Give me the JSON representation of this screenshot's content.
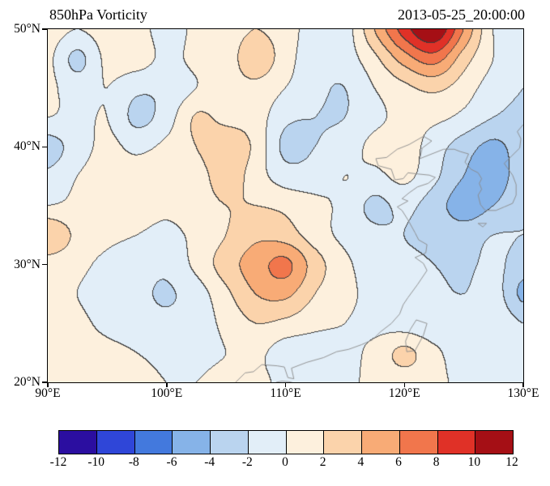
{
  "chart_data": {
    "type": "heatmap",
    "title_left": "850hPa Vorticity",
    "title_right": "2013-05-25_20:00:00",
    "xlim": [
      90,
      130
    ],
    "ylim": [
      20,
      50
    ],
    "x_ticks": [
      {
        "value": 90,
        "label": "90°E"
      },
      {
        "value": 100,
        "label": "100°E"
      },
      {
        "value": 110,
        "label": "110°E"
      },
      {
        "value": 120,
        "label": "120°E"
      },
      {
        "value": 130,
        "label": "130°E"
      }
    ],
    "y_ticks": [
      {
        "value": 50,
        "label": "50°N"
      },
      {
        "value": 40,
        "label": "40°N"
      },
      {
        "value": 30,
        "label": "30°N"
      },
      {
        "value": 20,
        "label": "20°N"
      }
    ],
    "levels": [
      -12,
      -10,
      -8,
      -6,
      -4,
      -2,
      0,
      2,
      4,
      6,
      8,
      10,
      12
    ],
    "colorbar_labels": [
      "-12",
      "-10",
      "-8",
      "-6",
      "-4",
      "-2",
      "0",
      "2",
      "4",
      "6",
      "8",
      "10",
      "12"
    ],
    "palette": [
      "#2b0ea0",
      "#2f46d8",
      "#4379dd",
      "#86b3e8",
      "#bad4ef",
      "#e2eef8",
      "#fdf0dd",
      "#fbd3ab",
      "#f8ab76",
      "#f1764c",
      "#e03127",
      "#a50f15"
    ],
    "contour_line_color": "#3c3c3c",
    "coast_color": "#8a8a8a",
    "grid": {
      "lons": [
        90,
        92.5,
        95,
        97.5,
        100,
        102.5,
        105,
        107.5,
        110,
        112.5,
        115,
        117.5,
        120,
        122.5,
        125,
        127.5,
        130
      ],
      "lats": [
        50,
        47.5,
        45,
        42.5,
        40,
        37.5,
        35,
        32.5,
        30,
        27.5,
        25,
        22.5,
        20
      ],
      "values": [
        [
          1,
          0,
          1,
          1,
          -1,
          0.5,
          1,
          2,
          1,
          -1,
          -1,
          4,
          9,
          12,
          6,
          0,
          -2
        ],
        [
          0.5,
          -2.5,
          0.5,
          1,
          -0.5,
          0.5,
          1,
          3.2,
          1,
          -1.5,
          -1,
          1.5,
          5,
          7,
          3,
          0,
          -2
        ],
        [
          0.5,
          -1,
          0,
          -1.5,
          -1.5,
          0,
          1,
          1.5,
          0,
          -1.5,
          -2,
          0,
          1.5,
          2.5,
          1,
          -1,
          -2
        ],
        [
          0,
          -0.5,
          0,
          -2.5,
          -1,
          2.2,
          1.4,
          1,
          -1.5,
          -2,
          -2,
          -0.5,
          0.5,
          0.5,
          -0.5,
          -2,
          -2.5
        ],
        [
          -3,
          -1,
          0.5,
          -0.5,
          0.5,
          2,
          3.6,
          1.5,
          -2.5,
          -2,
          -1,
          0.5,
          1,
          -1,
          -3,
          -4.5,
          -3
        ],
        [
          -1.5,
          0,
          1,
          1,
          1.5,
          1,
          3.2,
          1,
          -1,
          -1,
          0,
          -0.5,
          0.5,
          -1.5,
          -4,
          -5,
          -3
        ],
        [
          0,
          0.5,
          1,
          1,
          0.5,
          1,
          2,
          2,
          1.5,
          0.5,
          -0.5,
          -2.5,
          -1.5,
          -3,
          -5,
          -4,
          -2.5
        ],
        [
          4,
          1.5,
          0.5,
          0,
          -0.5,
          0.5,
          2,
          3.5,
          3,
          1,
          -0.5,
          -1.5,
          -2,
          -2.5,
          -3,
          -2,
          -2
        ],
        [
          1,
          0.5,
          -0.5,
          -1,
          -1.5,
          0.5,
          3,
          5,
          6.5,
          3,
          0.5,
          -1,
          -1.5,
          -2,
          -2.5,
          -1.5,
          -3
        ],
        [
          0.5,
          0,
          -1,
          -1.5,
          -2.2,
          -1,
          1.5,
          4,
          4.5,
          2,
          0.5,
          -0.5,
          -1,
          -1.5,
          -2,
          -1,
          -4.5
        ],
        [
          1,
          0.5,
          -0.5,
          -1,
          -1.5,
          -1,
          0.5,
          2,
          1.5,
          0.5,
          0,
          -0.5,
          -1,
          -1.5,
          -1,
          -0.5,
          -2
        ],
        [
          1,
          1,
          0.5,
          0,
          -0.5,
          -0.5,
          0,
          0.5,
          -1,
          -1,
          -0.5,
          0.5,
          2.5,
          0.5,
          -1,
          -1,
          -1.5
        ],
        [
          1,
          1,
          0.5,
          0.5,
          0,
          0,
          0.5,
          0.5,
          -0.5,
          -1,
          -0.5,
          0.5,
          1,
          0.5,
          -0.5,
          -1,
          -1
        ]
      ]
    },
    "coastlines": [
      {
        "name": "china-coast",
        "points": [
          [
            105.8,
            20.0
          ],
          [
            106.6,
            20.8
          ],
          [
            107.3,
            20.9
          ],
          [
            108.0,
            21.5
          ],
          [
            109.3,
            21.4
          ],
          [
            109.9,
            21.3
          ],
          [
            110.2,
            20.4
          ],
          [
            110.7,
            20.3
          ],
          [
            110.5,
            21.2
          ],
          [
            111.8,
            21.7
          ],
          [
            113.2,
            22.1
          ],
          [
            114.3,
            22.6
          ],
          [
            115.3,
            22.8
          ],
          [
            116.4,
            23.2
          ],
          [
            117.3,
            23.6
          ],
          [
            118.0,
            24.3
          ],
          [
            118.9,
            25.0
          ],
          [
            119.6,
            25.8
          ],
          [
            119.9,
            26.6
          ],
          [
            120.3,
            27.2
          ],
          [
            121.1,
            28.3
          ],
          [
            121.9,
            29.5
          ],
          [
            121.6,
            30.1
          ],
          [
            120.9,
            30.6
          ],
          [
            121.8,
            31.0
          ],
          [
            121.9,
            31.7
          ],
          [
            121.2,
            32.1
          ],
          [
            120.9,
            32.7
          ],
          [
            120.3,
            33.8
          ],
          [
            119.8,
            34.6
          ],
          [
            119.4,
            34.9
          ],
          [
            120.3,
            35.4
          ],
          [
            119.8,
            35.6
          ],
          [
            120.4,
            36.1
          ],
          [
            121.1,
            36.6
          ],
          [
            122.0,
            36.9
          ],
          [
            122.6,
            37.4
          ],
          [
            122.1,
            37.6
          ],
          [
            121.1,
            37.7
          ],
          [
            120.3,
            37.8
          ],
          [
            119.9,
            37.3
          ],
          [
            119.2,
            37.2
          ],
          [
            118.9,
            38.1
          ],
          [
            117.8,
            38.4
          ],
          [
            117.6,
            39.0
          ],
          [
            118.5,
            39.1
          ],
          [
            119.4,
            39.8
          ],
          [
            120.4,
            40.2
          ],
          [
            121.6,
            40.9
          ],
          [
            122.3,
            40.5
          ],
          [
            121.5,
            39.9
          ],
          [
            121.3,
            39.0
          ],
          [
            122.3,
            39.4
          ],
          [
            123.3,
            39.8
          ],
          [
            124.2,
            39.8
          ]
        ]
      },
      {
        "name": "korea-coast",
        "points": [
          [
            124.2,
            39.8
          ],
          [
            124.7,
            39.6
          ],
          [
            125.4,
            39.4
          ],
          [
            125.1,
            38.7
          ],
          [
            125.6,
            38.1
          ],
          [
            126.2,
            37.8
          ],
          [
            126.5,
            37.3
          ],
          [
            126.3,
            36.9
          ],
          [
            126.5,
            36.4
          ],
          [
            126.2,
            35.9
          ],
          [
            126.4,
            35.1
          ],
          [
            126.8,
            34.6
          ],
          [
            127.7,
            34.6
          ],
          [
            128.4,
            34.9
          ],
          [
            129.1,
            35.2
          ],
          [
            129.4,
            35.9
          ],
          [
            129.4,
            36.8
          ],
          [
            129.1,
            37.6
          ],
          [
            128.6,
            38.3
          ],
          [
            128.4,
            38.6
          ],
          [
            129.0,
            39.2
          ],
          [
            129.7,
            39.9
          ],
          [
            129.8,
            40.7
          ],
          [
            129.5,
            41.3
          ],
          [
            130.0,
            41.9
          ]
        ]
      },
      {
        "name": "taiwan",
        "points": [
          [
            121.0,
            25.3
          ],
          [
            121.9,
            25.0
          ],
          [
            121.6,
            24.0
          ],
          [
            120.9,
            22.7
          ],
          [
            120.2,
            22.6
          ],
          [
            120.1,
            23.5
          ],
          [
            120.5,
            24.5
          ],
          [
            121.0,
            25.3
          ]
        ]
      },
      {
        "name": "jeju",
        "points": [
          [
            126.2,
            33.5
          ],
          [
            126.9,
            33.5
          ],
          [
            126.6,
            33.2
          ],
          [
            126.2,
            33.5
          ]
        ]
      },
      {
        "name": "hainan-tip",
        "points": [
          [
            109.2,
            20.0
          ],
          [
            109.7,
            20.1
          ],
          [
            110.3,
            20.05
          ],
          [
            110.6,
            19.97
          ]
        ]
      }
    ]
  }
}
